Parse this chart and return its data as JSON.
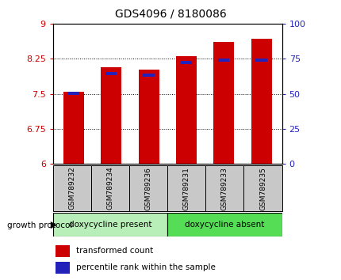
{
  "title": "GDS4096 / 8180086",
  "samples": [
    "GSM789232",
    "GSM789234",
    "GSM789236",
    "GSM789231",
    "GSM789233",
    "GSM789235"
  ],
  "red_values": [
    7.55,
    8.07,
    8.02,
    8.31,
    8.62,
    8.68
  ],
  "blue_values": [
    7.51,
    7.93,
    7.9,
    8.17,
    8.22,
    8.22
  ],
  "ylim_left": [
    6,
    9
  ],
  "ylim_right": [
    0,
    100
  ],
  "yticks_left": [
    6,
    6.75,
    7.5,
    8.25,
    9
  ],
  "yticks_right": [
    0,
    25,
    50,
    75,
    100
  ],
  "group1_label": "doxycycline present",
  "group2_label": "doxycycline absent",
  "group_protocol_label": "growth protocol",
  "legend_red": "transformed count",
  "legend_blue": "percentile rank within the sample",
  "bar_width": 0.55,
  "bar_color_red": "#cc0000",
  "bar_color_blue": "#2222bb",
  "group1_bg": "#b8eeb8",
  "group2_bg": "#55dd55",
  "tick_label_bg": "#c8c8c8",
  "base_value": 6
}
